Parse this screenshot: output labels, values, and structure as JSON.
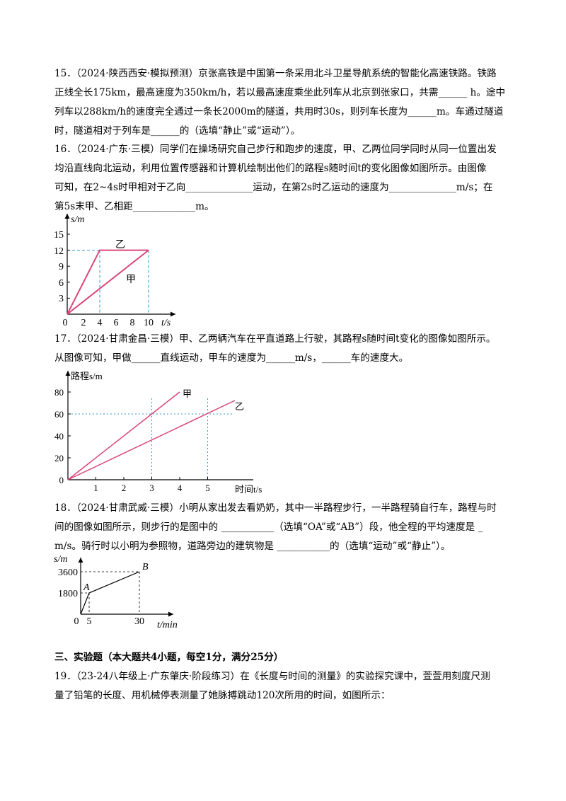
{
  "q15": {
    "l1": "15．（2024·陕西西安·模拟预测）京张高铁是中国第一条采用北斗卫星导航系统的智能化高速铁路。铁路",
    "l2": "正线全长175km，最高速度为350km/h，若以最高速度乘坐此列车从北京到张家口，共需______ h。途中",
    "l3": "列车以288km/h的速度完全通过一条长2000m的隧道，共用时30s，则列车长度为______m。车通过隧道",
    "l4": "时，隧道相对于列车是______的（选填“静止”或“运动”）。"
  },
  "q16": {
    "l1": "16．（2024·广东·三模）同学们在操场研究自己步行和跑步的速度，甲、乙两位同学同时从同一位置出发",
    "l2": "均沿直线向北运动，利用位置传感器和计算机绘制出他们的路程s随时间t的变化图像如图所示。由图像",
    "l3": "可知，在2~4s时甲相对于乙向______________运动，在第2s时乙运动的速度为______________m/s；在",
    "l4": "第5s末甲、乙相距_____________m。",
    "chart": {
      "ylabel": "s/m",
      "xlabel": "t/s",
      "yticks": [
        "15",
        "12",
        "9",
        "6",
        "3"
      ],
      "xticks": [
        "0",
        "2",
        "4",
        "6",
        "8",
        "10"
      ],
      "label_yi": "乙",
      "label_jia": "甲"
    }
  },
  "q17": {
    "l1": "17．（2024·甘肃金昌·三模）甲、乙两辆汽车在平直道路上行驶，其路程s随时间t变化的图像如图所示。",
    "l2": "从图像可知，甲做______直线运动，甲车的速度为______m/s，______车的速度大。",
    "chart": {
      "ylabel": "路程s/m",
      "xlabel": "时间t/s",
      "yticks": [
        "80",
        "60",
        "40",
        "20",
        "0"
      ],
      "xticks": [
        "1",
        "2",
        "3",
        "4",
        "5"
      ],
      "label_jia": "甲",
      "label_yi": "乙"
    }
  },
  "q18": {
    "l1": "18．（2024·甘肃武威·三模）小明从家出发去看奶奶，其中一半路程步行，一半路程骑自行车，路程与时",
    "l2": "间的图像如图所示，则步行的是图中的 ___________（选填“OA”或“AB”）段，他全程的平均速度是 _",
    "l3": "m/s。骑行时以小明为参照物，道路旁边的建筑物是 ___________的（选填“运动”或“静止”）。",
    "chart": {
      "ylabel": "s/m",
      "xlabel": "t/min",
      "yticks": [
        "3600",
        "1800"
      ],
      "xticks": [
        "0",
        "5",
        "30"
      ],
      "point_a": "A",
      "point_b": "B"
    }
  },
  "section3": "三、实验题（本大题共4小题，每空1分，满分25分）",
  "q19": {
    "l1": "19．（23-24八年级上·广东肇庆·阶段练习）在《长度与时间的测量》的实验探究课中，萱萱用刻度尺测",
    "l2": "量了铅笔的长度、用机械停表测量了她脉搏跳动120次所用的时间，如图所示："
  },
  "chart_data": [
    {
      "type": "line",
      "ylabel": "s/m",
      "xlabel": "t/s",
      "ylim": [
        0,
        15
      ],
      "xlim": [
        0,
        10
      ],
      "series": [
        {
          "name": "乙",
          "x": [
            0,
            4,
            10
          ],
          "y": [
            0,
            12,
            12
          ]
        },
        {
          "name": "甲",
          "x": [
            0,
            10
          ],
          "y": [
            0,
            12
          ]
        }
      ]
    },
    {
      "type": "line",
      "ylabel": "路程s/m",
      "xlabel": "时间t/s",
      "ylim": [
        0,
        80
      ],
      "xlim": [
        0,
        5.5
      ],
      "series": [
        {
          "name": "甲",
          "x": [
            0,
            4
          ],
          "y": [
            0,
            80
          ]
        },
        {
          "name": "乙",
          "x": [
            0,
            5.5
          ],
          "y": [
            0,
            72
          ]
        }
      ]
    },
    {
      "type": "line",
      "ylabel": "s/m",
      "xlabel": "t/min",
      "series": [
        {
          "name": "",
          "x": [
            0,
            5,
            30
          ],
          "y": [
            0,
            1800,
            3600
          ]
        }
      ]
    }
  ],
  "colors": {
    "line": "#d9477a",
    "guide": "#3399cc",
    "text": "#000000"
  }
}
